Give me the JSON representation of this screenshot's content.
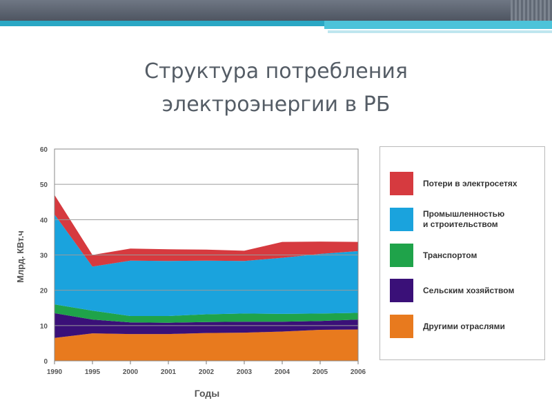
{
  "slide": {
    "title_line1": "Структура потребления",
    "title_line2": "электроэнергии в РБ"
  },
  "chart_data": {
    "type": "area",
    "stacked": true,
    "title": "",
    "xlabel": "Годы",
    "ylabel": "Млрд. КВт.ч",
    "ylim": [
      0,
      60
    ],
    "yticks": [
      0,
      10,
      20,
      30,
      40,
      50,
      60
    ],
    "categories": [
      "1990",
      "1995",
      "2000",
      "2001",
      "2002",
      "2003",
      "2004",
      "2005",
      "2006"
    ],
    "grid": true,
    "legend_position": "right",
    "series": [
      {
        "name": "Другими отраслями",
        "color": "#e87a1e",
        "values": [
          6.5,
          7.8,
          7.6,
          7.6,
          7.9,
          8.0,
          8.3,
          8.8,
          8.9
        ]
      },
      {
        "name": "Сельским хозяйством",
        "color": "#3a1078",
        "values": [
          7.0,
          3.9,
          3.3,
          3.2,
          3.1,
          3.1,
          2.8,
          2.5,
          2.8
        ]
      },
      {
        "name": "Транспортом",
        "color": "#1fa34a",
        "values": [
          2.5,
          2.5,
          1.8,
          1.9,
          2.2,
          2.3,
          2.2,
          2.1,
          1.9
        ]
      },
      {
        "name": "Промышленностью\nи строительством",
        "color": "#1aa3dd",
        "values": [
          25.5,
          12.5,
          15.7,
          15.6,
          15.2,
          14.9,
          15.9,
          16.9,
          17.5
        ]
      },
      {
        "name": "Потери в электросетях",
        "color": "#d63a3f",
        "values": [
          5.5,
          3.3,
          3.4,
          3.3,
          3.1,
          2.9,
          4.5,
          3.5,
          2.6
        ]
      }
    ]
  }
}
